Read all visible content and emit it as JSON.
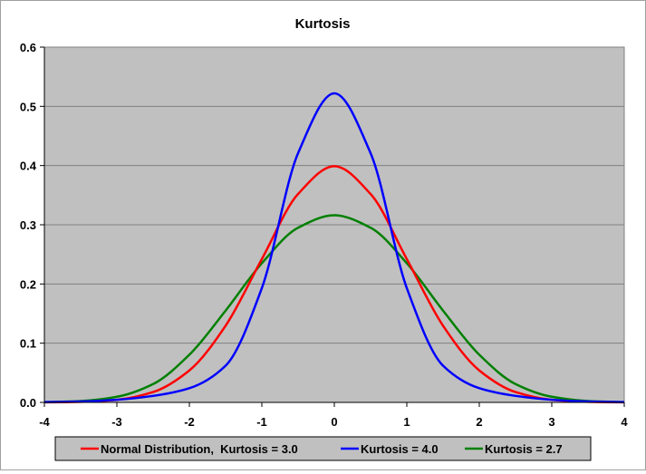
{
  "chart_data": {
    "type": "line",
    "title": "Kurtosis",
    "xlabel": "",
    "ylabel": "",
    "xlim": [
      -4,
      4
    ],
    "ylim": [
      0,
      0.6
    ],
    "x_ticks": [
      "-4",
      "-3",
      "-2",
      "-1",
      "0",
      "1",
      "2",
      "3",
      "4"
    ],
    "y_ticks": [
      "0.0",
      "0.1",
      "0.2",
      "0.3",
      "0.4",
      "0.5",
      "0.6"
    ],
    "grid": "horizontal",
    "plot_background": "#c0c0c0",
    "legend_position": "bottom",
    "series": [
      {
        "name": "Normal Distribution,  Kurtosis = 3.0",
        "color": "#ff0000",
        "x": [
          -4,
          -3.5,
          -3,
          -2.5,
          -2,
          -1.5,
          -1,
          -0.5,
          0,
          0.5,
          1,
          1.5,
          2,
          2.5,
          3,
          3.5,
          4
        ],
        "values": [
          0.0001,
          0.0009,
          0.0044,
          0.0175,
          0.054,
          0.1295,
          0.242,
          0.352,
          0.399,
          0.352,
          0.242,
          0.1295,
          0.054,
          0.0175,
          0.0044,
          0.0009,
          0.0001
        ]
      },
      {
        "name": "Kurtosis = 4.0",
        "color": "#0000ff",
        "x": [
          -4,
          -3.5,
          -3,
          -2.5,
          -2,
          -1.5,
          -1,
          -0.5,
          0,
          0.5,
          1,
          1.5,
          2,
          2.5,
          3,
          3.5,
          4
        ],
        "values": [
          0.0005,
          0.0015,
          0.0045,
          0.011,
          0.024,
          0.062,
          0.193,
          0.421,
          0.522,
          0.421,
          0.193,
          0.062,
          0.024,
          0.011,
          0.0045,
          0.0015,
          0.0005
        ]
      },
      {
        "name": "Kurtosis = 2.7",
        "color": "#008000",
        "x": [
          -4,
          -3.5,
          -3,
          -2.5,
          -2,
          -1.5,
          -1,
          -0.5,
          0,
          0.5,
          1,
          1.5,
          2,
          2.5,
          3,
          3.5,
          4
        ],
        "values": [
          0.0004,
          0.0023,
          0.0095,
          0.031,
          0.0805,
          0.155,
          0.235,
          0.295,
          0.316,
          0.295,
          0.235,
          0.155,
          0.0805,
          0.031,
          0.0095,
          0.0023,
          0.0004
        ]
      }
    ]
  }
}
